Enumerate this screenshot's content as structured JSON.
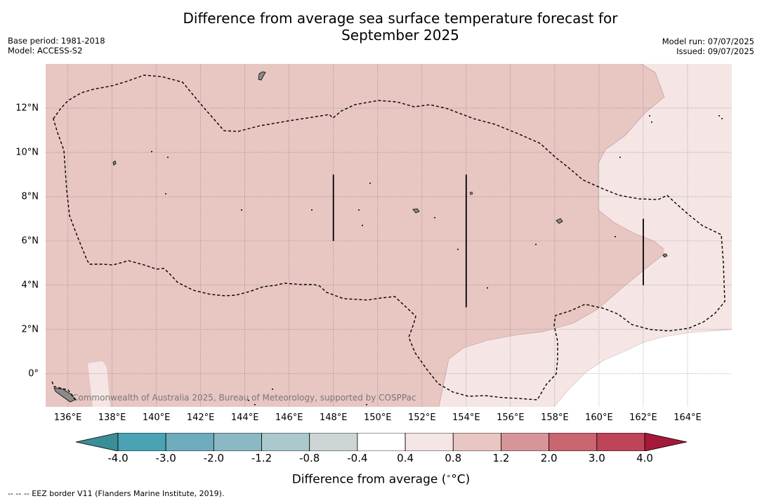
{
  "title_line1": "Difference from average sea surface temperature forecast for",
  "title_line2": "September 2025",
  "meta": {
    "base_period": "Base period: 1981-2018",
    "model": "Model: ACCESS-S2",
    "model_run": "Model run: 07/07/2025",
    "issued": "Issued: 09/07/2025"
  },
  "map": {
    "watermark": "Commonwealth of Australia 2025, Bureau of Meteorology, supported by COSPPac",
    "lon_labels": [
      "136°E",
      "138°E",
      "140°E",
      "142°E",
      "144°E",
      "146°E",
      "148°E",
      "150°E",
      "152°E",
      "154°E",
      "156°E",
      "158°E",
      "160°E",
      "162°E",
      "164°E"
    ],
    "lat_labels": [
      "12°N",
      "10°N",
      "8°N",
      "6°N",
      "4°N",
      "2°N",
      "0°"
    ],
    "extent": {
      "lon_min": 135.0,
      "lon_max": 166.0,
      "lat_min": -1.5,
      "lat_max": 14.0
    },
    "fill_colors": {
      "band_0.8_1.2": "#e8c6c2",
      "band_0.4_0.8": "#f5e6e5",
      "band_-0.4_0.4": "#ffffff",
      "land": "#8a8a8a",
      "grid": "#777777"
    },
    "boundary_segments": [
      {
        "lon": 148.0,
        "lat_from": 6.0,
        "lat_to": 9.0
      },
      {
        "lon": 154.0,
        "lat_from": 3.0,
        "lat_to": 9.0
      },
      {
        "lon": 162.0,
        "lat_from": 4.0,
        "lat_to": 7.0
      }
    ]
  },
  "colorbar": {
    "labels": [
      "-4.0",
      "-3.0",
      "-2.0",
      "-1.2",
      "-0.8",
      "-0.4",
      "0.4",
      "0.8",
      "1.2",
      "2.0",
      "3.0",
      "4.0"
    ],
    "colors": [
      "#3b8d98",
      "#4aa3b3",
      "#6eacbd",
      "#8cb8c3",
      "#abc9cd",
      "#cdd5d7",
      "#ffffff",
      "#f5e6e5",
      "#e8c6c2",
      "#d7959a",
      "#c9666f",
      "#be4458",
      "#a4183a"
    ],
    "title": "Difference from average (",
    "title_unit": "°C",
    "title_close": ")"
  },
  "footnote": "--  --  -- EEZ border V11 (Flanders Marine Institute, 2019)."
}
